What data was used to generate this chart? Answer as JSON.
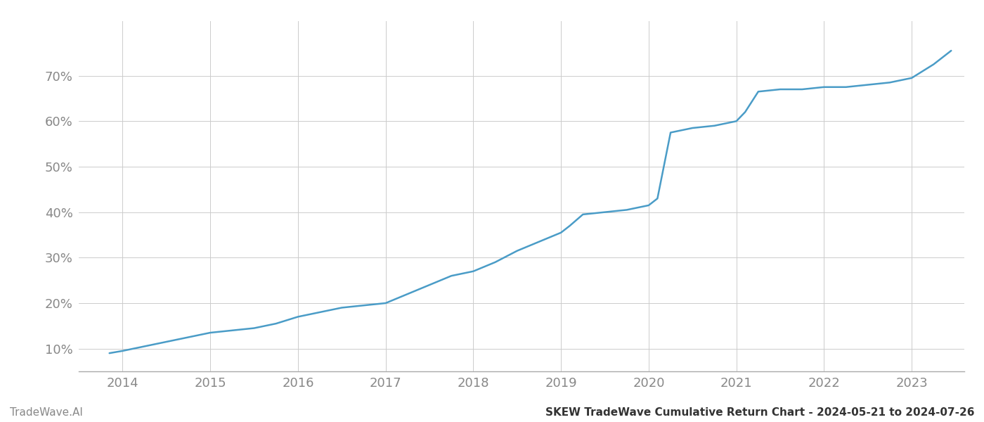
{
  "footer_left": "TradeWave.AI",
  "footer_right": "SKEW TradeWave Cumulative Return Chart - 2024-05-21 to 2024-07-26",
  "line_color": "#4a9cc7",
  "line_width": 1.8,
  "background_color": "#ffffff",
  "grid_color": "#cccccc",
  "x_years": [
    2013.85,
    2014.0,
    2014.25,
    2014.5,
    2014.75,
    2015.0,
    2015.25,
    2015.5,
    2015.75,
    2016.0,
    2016.25,
    2016.5,
    2016.75,
    2017.0,
    2017.25,
    2017.5,
    2017.75,
    2018.0,
    2018.25,
    2018.5,
    2018.75,
    2019.0,
    2019.1,
    2019.25,
    2019.5,
    2019.75,
    2020.0,
    2020.1,
    2020.25,
    2020.5,
    2020.75,
    2021.0,
    2021.1,
    2021.25,
    2021.5,
    2021.75,
    2022.0,
    2022.25,
    2022.5,
    2022.75,
    2023.0,
    2023.25,
    2023.45
  ],
  "y_values": [
    9.0,
    9.5,
    10.5,
    11.5,
    12.5,
    13.5,
    14.0,
    14.5,
    15.5,
    17.0,
    18.0,
    19.0,
    19.5,
    20.0,
    22.0,
    24.0,
    26.0,
    27.0,
    29.0,
    31.5,
    33.5,
    35.5,
    37.0,
    39.5,
    40.0,
    40.5,
    41.5,
    43.0,
    57.5,
    58.5,
    59.0,
    60.0,
    62.0,
    66.5,
    67.0,
    67.0,
    67.5,
    67.5,
    68.0,
    68.5,
    69.5,
    72.5,
    75.5
  ],
  "xticks": [
    2014,
    2015,
    2016,
    2017,
    2018,
    2019,
    2020,
    2021,
    2022,
    2023
  ],
  "yticks": [
    10,
    20,
    30,
    40,
    50,
    60,
    70
  ],
  "xlim": [
    2013.5,
    2023.6
  ],
  "ylim": [
    5,
    82
  ],
  "tick_label_color": "#888888",
  "tick_fontsize": 13,
  "footer_fontsize": 11,
  "footer_left_color": "#888888",
  "footer_right_color": "#333333"
}
